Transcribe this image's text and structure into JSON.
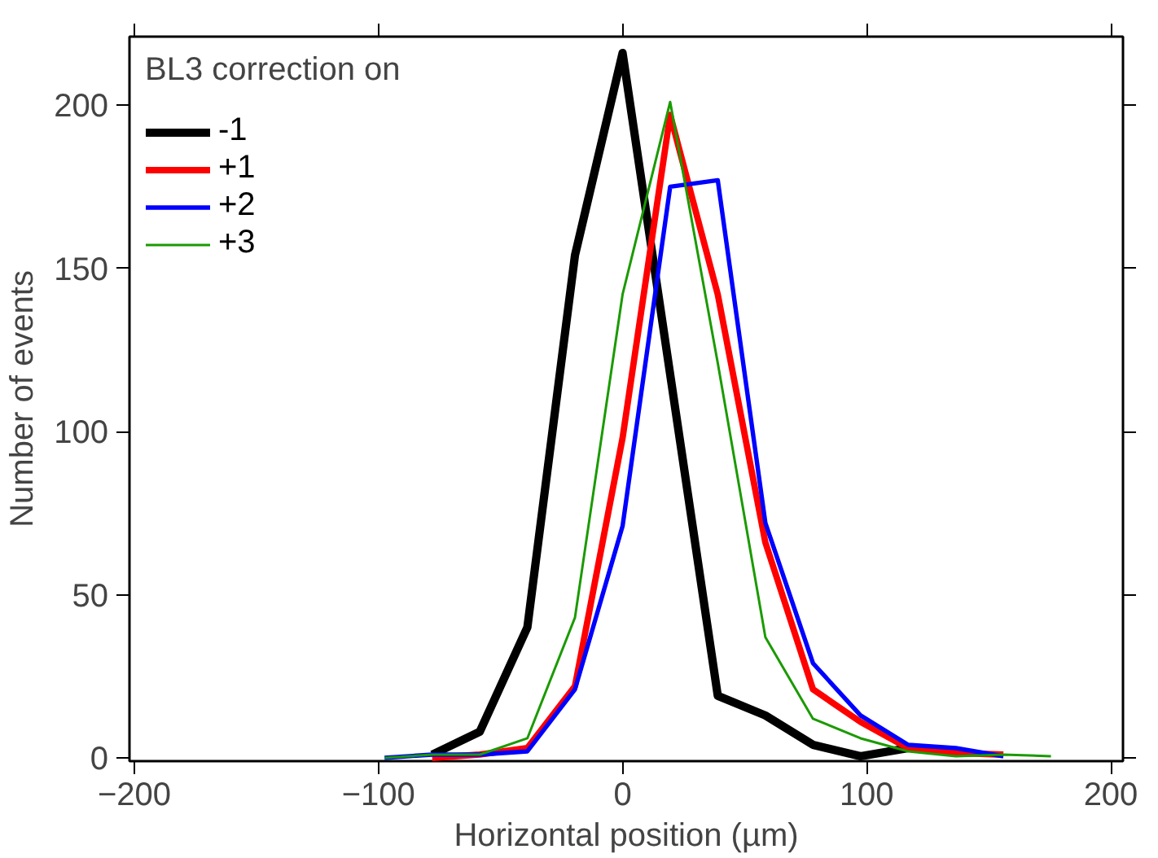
{
  "chart_data": {
    "type": "line",
    "xlabel": "Horizontal position (µm)",
    "ylabel": "Number of events",
    "legend_title": "BL3 correction on",
    "legend": "top left",
    "grid": false,
    "xlim": [
      -202,
      205
    ],
    "xticks": [
      -200,
      -100,
      0,
      100,
      200
    ],
    "ylim": [
      -1,
      221
    ],
    "yticks": [
      0,
      50,
      100,
      150,
      200
    ],
    "series": [
      {
        "name": "-1",
        "color": "#000000",
        "x": [
          -78,
          -58.5,
          -39,
          -19.5,
          0,
          39,
          58.5,
          78,
          97.5,
          117
        ],
        "values": [
          1,
          8,
          40,
          154,
          216,
          19,
          13,
          4,
          0.5,
          3
        ]
      },
      {
        "name": "+1",
        "color": "#ff0000",
        "x": [
          -78,
          -58.5,
          -39,
          -19.5,
          0,
          19.5,
          39,
          58.5,
          78,
          97.5,
          117,
          136.5,
          156
        ],
        "values": [
          0,
          1,
          3,
          22,
          98,
          197,
          142,
          66,
          21,
          11,
          3,
          1.5,
          1
        ]
      },
      {
        "name": "+2",
        "color": "#0000ff",
        "x": [
          -97.5,
          -78,
          -58.5,
          -39,
          -19.5,
          0,
          19.5,
          39,
          58.5,
          78,
          97.5,
          117,
          136.5,
          156
        ],
        "values": [
          0,
          1,
          1,
          2,
          21,
          71,
          175,
          177,
          72,
          29,
          13,
          4,
          3,
          0.5
        ]
      },
      {
        "name": "+3",
        "color": "#1a9a00",
        "x": [
          -97.5,
          -78,
          -58.5,
          -39,
          -19.5,
          0,
          19.5,
          39,
          58.5,
          78,
          97.5,
          117,
          136.5,
          156,
          175.5
        ],
        "values": [
          0,
          1,
          1,
          6,
          43,
          142,
          201,
          121,
          37,
          12,
          6,
          2,
          0.5,
          1,
          0.5
        ]
      }
    ]
  }
}
